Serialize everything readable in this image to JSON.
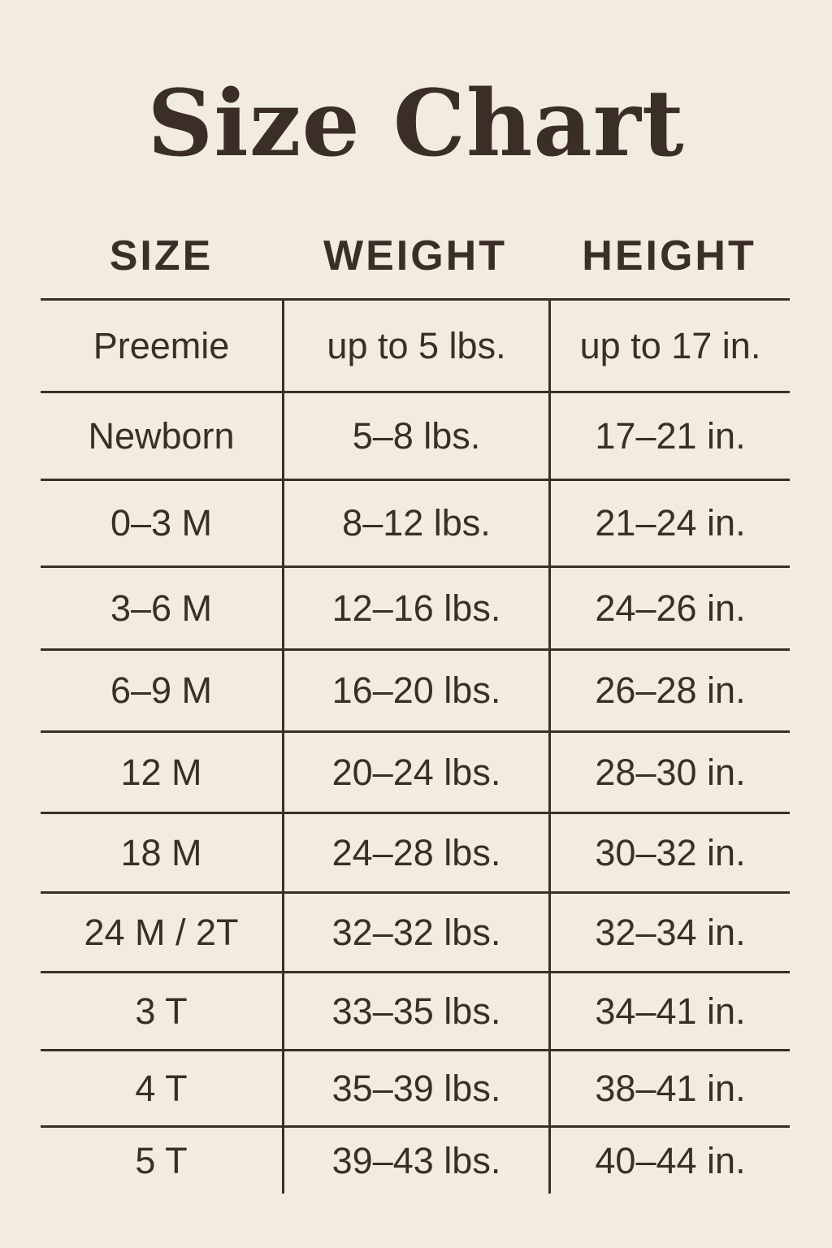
{
  "title": "Size Chart",
  "headers": [
    "SIZE",
    "WEIGHT",
    "HEIGHT"
  ],
  "rows": [
    {
      "size": "Preemie",
      "weight": "up to 5 lbs.",
      "height": "up to 17 in."
    },
    {
      "size": "Newborn",
      "weight": "5–8 lbs.",
      "height": "17–21 in."
    },
    {
      "size": "0–3 M",
      "weight": "8–12 lbs.",
      "height": "21–24 in."
    },
    {
      "size": "3–6 M",
      "weight": "12–16 lbs.",
      "height": "24–26 in."
    },
    {
      "size": "6–9 M",
      "weight": "16–20 lbs.",
      "height": "26–28 in."
    },
    {
      "size": "12 M",
      "weight": "20–24 lbs.",
      "height": "28–30 in."
    },
    {
      "size": "18 M",
      "weight": "24–28 lbs.",
      "height": "30–32 in."
    },
    {
      "size": "24 M / 2T",
      "weight": "32–32 lbs.",
      "height": "32–34 in."
    },
    {
      "size": "3 T",
      "weight": "33–35 lbs.",
      "height": "34–41 in."
    },
    {
      "size": "4 T",
      "weight": "35–39 lbs.",
      "height": "38–41 in."
    },
    {
      "size": "5 T",
      "weight": "39–43 lbs.",
      "height": "40–44 in."
    }
  ],
  "colors": {
    "background": "#f2ebe0",
    "text": "#3a2e26"
  }
}
